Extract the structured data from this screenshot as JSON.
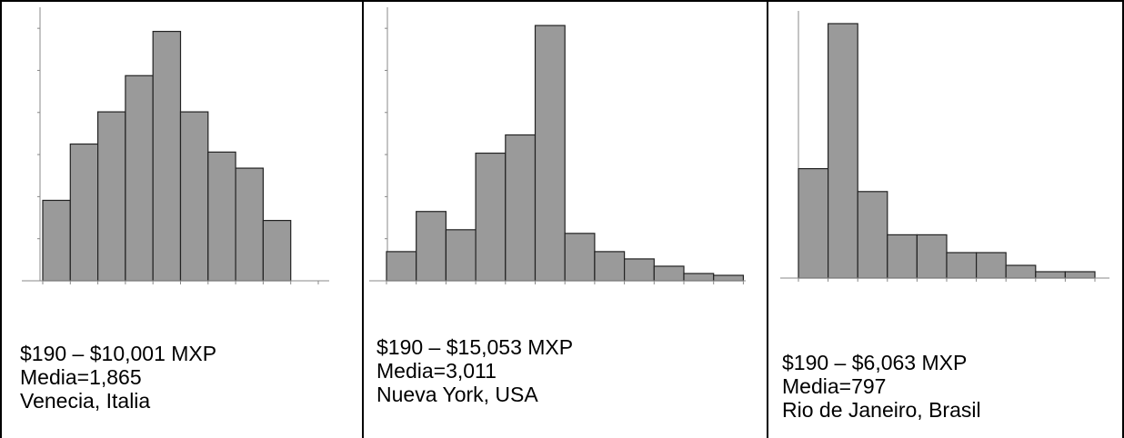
{
  "colors": {
    "bar_fill": "#9a9a9a",
    "bar_stroke": "#222222",
    "axis": "#888888"
  },
  "chart_data": [
    {
      "type": "bar",
      "title": "Venecia, Italia",
      "range_label": "$190 – $10,001 MXP",
      "mean_label": "Media=1,865",
      "location_label": "Venecia, Italia",
      "bins": 9,
      "values": [
        10,
        17,
        21,
        25.5,
        31,
        21,
        16,
        14,
        7.5
      ],
      "ylim": [
        0,
        34
      ],
      "x_ticks": 11,
      "y_ticks": 6
    },
    {
      "type": "bar",
      "title": "Nueva York, USA",
      "range_label": "$190 – $15,053 MXP",
      "mean_label": "Media=3,011",
      "location_label": "Nueva York, USA",
      "bins": 13,
      "values": [
        8,
        19,
        14,
        35,
        40,
        70,
        13,
        8,
        6,
        4,
        2,
        1.5,
        0
      ],
      "ylim": [
        0,
        75
      ],
      "x_ticks": 14,
      "y_ticks": 6
    },
    {
      "type": "bar",
      "title": "Rio de Janeiro, Brasil",
      "range_label": "$190 – $6,063 MXP",
      "mean_label": "Media=797",
      "location_label": "Rio de Janeiro, Brasil",
      "bins": 10,
      "values": [
        43,
        100,
        34,
        17,
        17,
        10,
        10,
        5,
        2.5,
        2.5
      ],
      "ylim": [
        0,
        105
      ],
      "x_ticks": 12,
      "y_ticks": 0
    }
  ]
}
